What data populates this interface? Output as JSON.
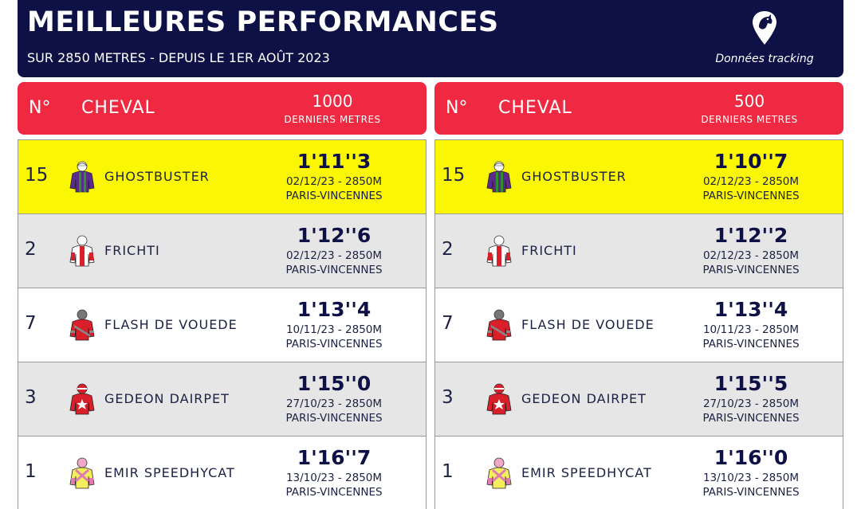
{
  "header": {
    "title": "MEILLEURES PERFORMANCES",
    "subtitle": "SUR 2850 METRES - DEPUIS LE 1ER AOÛT 2023",
    "tracking_label": "Données tracking",
    "logo_icon": "horse-head-pin-icon"
  },
  "colors": {
    "header_bg": "#0e1145",
    "column_header_bg": "#ef2941",
    "highlight_row": "#fbf704",
    "alt_row": "#e6e6e6"
  },
  "tables": [
    {
      "col_no": "N°",
      "col_cheval": "CHEVAL",
      "distance": "1000",
      "distance_sub": "DERNIERS METRES",
      "rows": [
        {
          "num": "15",
          "name": "GHOSTBUSTER",
          "time": "1'11''3",
          "date": "02/12/23 - 2850M",
          "venue": "PARIS-VINCENNES",
          "silk": "purple-green"
        },
        {
          "num": "2",
          "name": "FRICHTI",
          "time": "1'12''6",
          "date": "02/12/23 - 2850M",
          "venue": "PARIS-VINCENNES",
          "silk": "red-white"
        },
        {
          "num": "7",
          "name": "FLASH DE VOUEDE",
          "time": "1'13''4",
          "date": "10/11/23 - 2850M",
          "venue": "PARIS-VINCENNES",
          "silk": "red-grey"
        },
        {
          "num": "3",
          "name": "GEDEON DAIRPET",
          "time": "1'15''0",
          "date": "27/10/23 - 2850M",
          "venue": "PARIS-VINCENNES",
          "silk": "red-star"
        },
        {
          "num": "1",
          "name": "EMIR SPEEDHYCAT",
          "time": "1'16''7",
          "date": "13/10/23 - 2850M",
          "venue": "PARIS-VINCENNES",
          "silk": "yellow-pink"
        }
      ]
    },
    {
      "col_no": "N°",
      "col_cheval": "CHEVAL",
      "distance": "500",
      "distance_sub": "DERNIERS METRES",
      "rows": [
        {
          "num": "15",
          "name": "GHOSTBUSTER",
          "time": "1'10''7",
          "date": "02/12/23 - 2850M",
          "venue": "PARIS-VINCENNES",
          "silk": "purple-green"
        },
        {
          "num": "2",
          "name": "FRICHTI",
          "time": "1'12''2",
          "date": "02/12/23 - 2850M",
          "venue": "PARIS-VINCENNES",
          "silk": "red-white"
        },
        {
          "num": "7",
          "name": "FLASH DE VOUEDE",
          "time": "1'13''4",
          "date": "10/11/23 - 2850M",
          "venue": "PARIS-VINCENNES",
          "silk": "red-grey"
        },
        {
          "num": "3",
          "name": "GEDEON DAIRPET",
          "time": "1'15''5",
          "date": "27/10/23 - 2850M",
          "venue": "PARIS-VINCENNES",
          "silk": "red-star"
        },
        {
          "num": "1",
          "name": "EMIR SPEEDHYCAT",
          "time": "1'16''0",
          "date": "13/10/23 - 2850M",
          "venue": "PARIS-VINCENNES",
          "silk": "yellow-pink"
        }
      ]
    }
  ]
}
